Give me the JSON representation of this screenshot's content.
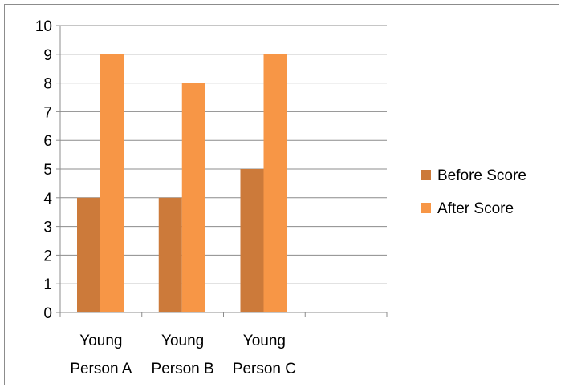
{
  "chart_data": {
    "type": "bar",
    "categories": [
      [
        "Young",
        "Person A"
      ],
      [
        "Young",
        "Person B"
      ],
      [
        "Young",
        "Person C"
      ],
      [
        "",
        ""
      ]
    ],
    "series": [
      {
        "name": "Before Score",
        "values": [
          4,
          4,
          5,
          null
        ],
        "color": "#CC7A3A"
      },
      {
        "name": "After Score",
        "values": [
          9,
          8,
          9,
          null
        ],
        "color": "#F79646"
      }
    ],
    "ylim": [
      0,
      10
    ],
    "yticks": [
      0,
      1,
      2,
      3,
      4,
      5,
      6,
      7,
      8,
      9,
      10
    ],
    "grid": true,
    "legend": "right",
    "title": "",
    "xlabel": "",
    "ylabel": ""
  }
}
